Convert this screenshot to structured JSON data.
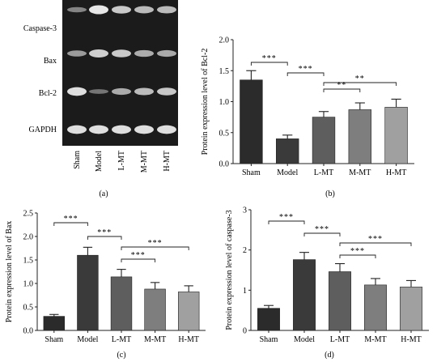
{
  "panels": {
    "a": "(a)",
    "b": "(b)",
    "c": "(c)",
    "d": "(d)"
  },
  "blot": {
    "row_labels": [
      "Caspase-3",
      "Bax",
      "Bcl-2",
      "GAPDH"
    ],
    "lane_labels": [
      "Sham",
      "Model",
      "L-MT",
      "M-MT",
      "H-MT"
    ],
    "band_intensity": [
      [
        0.35,
        1.0,
        0.8,
        0.7,
        0.72
      ],
      [
        0.5,
        0.85,
        0.8,
        0.62,
        0.6
      ],
      [
        0.95,
        0.25,
        0.6,
        0.72,
        0.78
      ],
      [
        0.95,
        0.95,
        0.95,
        0.95,
        0.95
      ]
    ]
  },
  "colors": {
    "sham": "#2b2b2b",
    "model": "#3a3a3a",
    "lmt": "#5e5e5e",
    "mmt": "#7e7e7e",
    "hmt": "#a0a0a0",
    "blot_bg": "#1b1b1b",
    "band": "#f2f2f2"
  },
  "chart_data": [
    {
      "panel": "b",
      "type": "bar",
      "categories": [
        "Sham",
        "Model",
        "L-MT",
        "M-MT",
        "H-MT"
      ],
      "values": [
        1.35,
        0.4,
        0.75,
        0.87,
        0.91
      ],
      "errors": [
        0.15,
        0.06,
        0.09,
        0.11,
        0.13
      ],
      "ylabel": "Protein expression level of Bcl-2",
      "ylim": [
        0,
        2.0
      ],
      "yticks": [
        "0.0",
        "0.5",
        "1.0",
        "1.5",
        "2.0"
      ],
      "significance": [
        {
          "from": 0,
          "to": 1,
          "label": "***"
        },
        {
          "from": 1,
          "to": 2,
          "label": "***"
        },
        {
          "from": 2,
          "to": 3,
          "label": "**"
        },
        {
          "from": 2,
          "to": 4,
          "label": "**"
        }
      ]
    },
    {
      "panel": "c",
      "type": "bar",
      "categories": [
        "Sham",
        "Model",
        "L-MT",
        "M-MT",
        "H-MT"
      ],
      "values": [
        0.3,
        1.6,
        1.14,
        0.88,
        0.82
      ],
      "errors": [
        0.04,
        0.17,
        0.16,
        0.14,
        0.13
      ],
      "ylabel": "Protein expression level of Bax",
      "ylim": [
        0,
        2.5
      ],
      "yticks": [
        "0.0",
        "0.5",
        "1.0",
        "1.5",
        "2.0",
        "2.5"
      ],
      "significance": [
        {
          "from": 0,
          "to": 1,
          "label": "***"
        },
        {
          "from": 1,
          "to": 2,
          "label": "***"
        },
        {
          "from": 2,
          "to": 3,
          "label": "***"
        },
        {
          "from": 2,
          "to": 4,
          "label": "***"
        }
      ]
    },
    {
      "panel": "d",
      "type": "bar",
      "categories": [
        "Sham",
        "Model",
        "L-MT",
        "M-MT",
        "H-MT"
      ],
      "values": [
        0.55,
        1.76,
        1.46,
        1.13,
        1.08
      ],
      "errors": [
        0.07,
        0.18,
        0.2,
        0.16,
        0.16
      ],
      "ylabel": "Protein expression level of caspase-3",
      "ylim": [
        0,
        3
      ],
      "yticks": [
        "0",
        "1",
        "2",
        "3"
      ],
      "significance": [
        {
          "from": 0,
          "to": 1,
          "label": "***"
        },
        {
          "from": 1,
          "to": 2,
          "label": "***"
        },
        {
          "from": 2,
          "to": 3,
          "label": "***"
        },
        {
          "from": 2,
          "to": 4,
          "label": "***"
        }
      ]
    }
  ]
}
